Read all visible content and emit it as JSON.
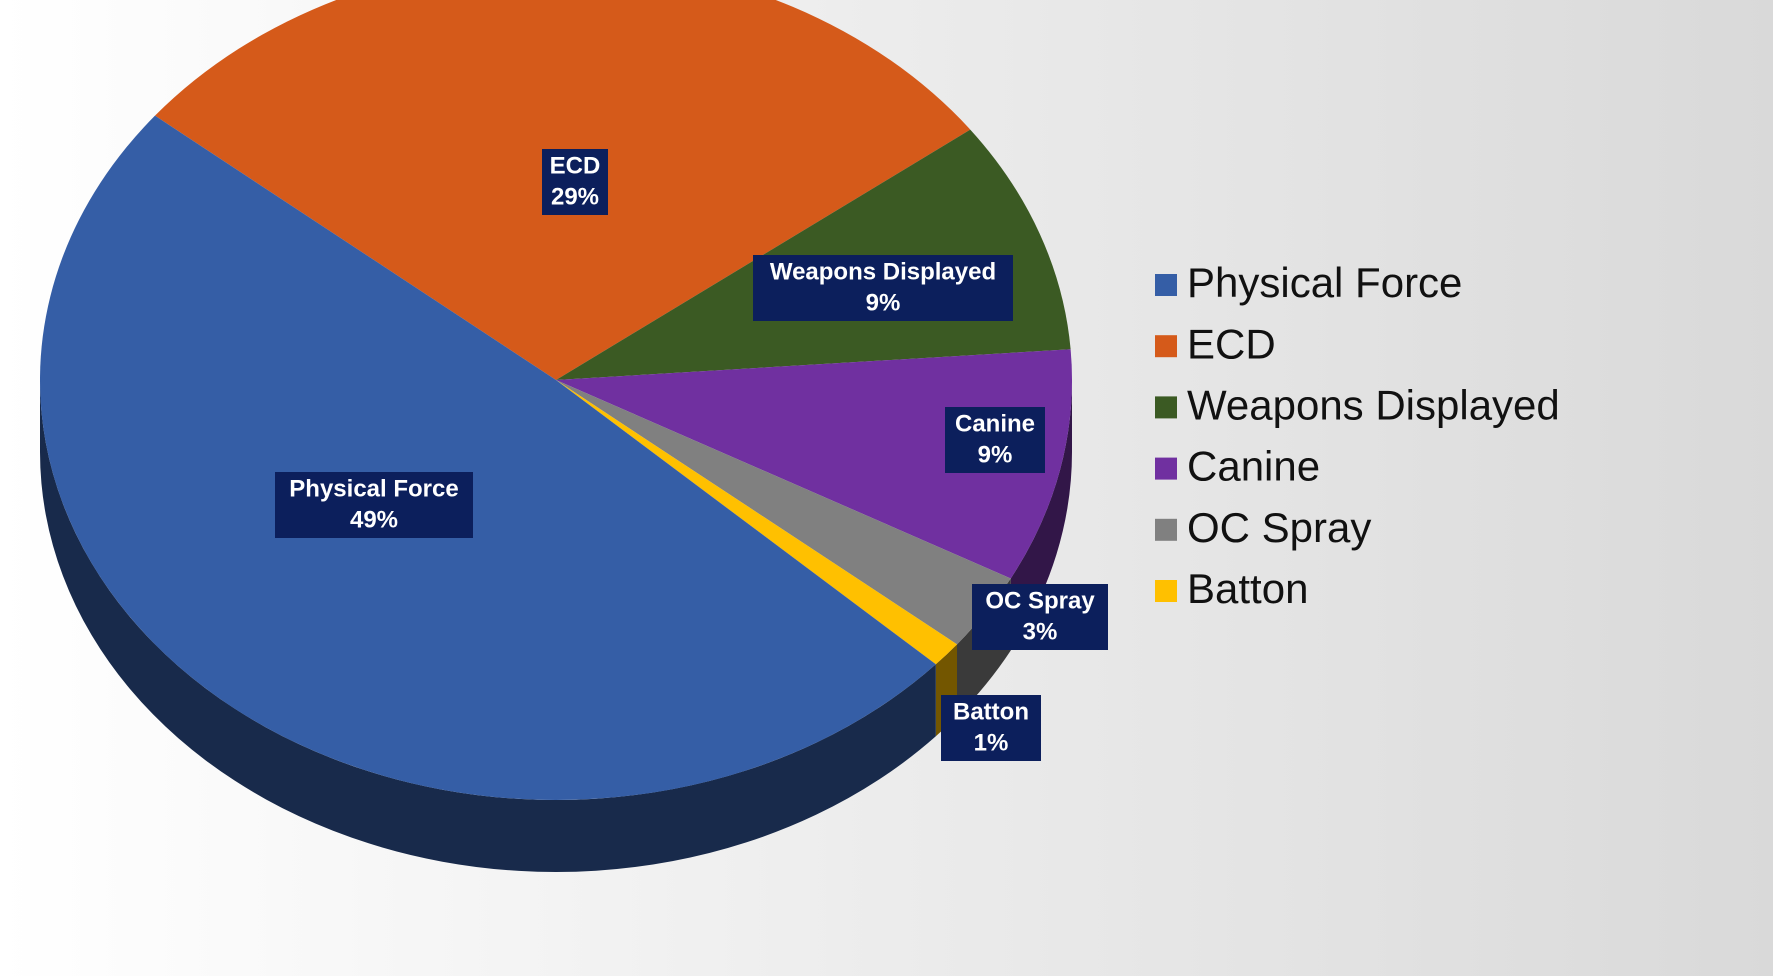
{
  "chart_data": {
    "type": "pie",
    "categories": [
      "Physical Force",
      "ECD",
      "Weapons Displayed",
      "Canine",
      "OC Spray",
      "Batton"
    ],
    "values": [
      49,
      29,
      9,
      9,
      3,
      1
    ],
    "value_labels": [
      "49%",
      "29%",
      "9%",
      "9%",
      "3%",
      "1%"
    ],
    "colors": [
      "#355ea6",
      "#d55a1a",
      "#3b5a23",
      "#7030a0",
      "#808080",
      "#ffc000"
    ],
    "legend": "right"
  }
}
